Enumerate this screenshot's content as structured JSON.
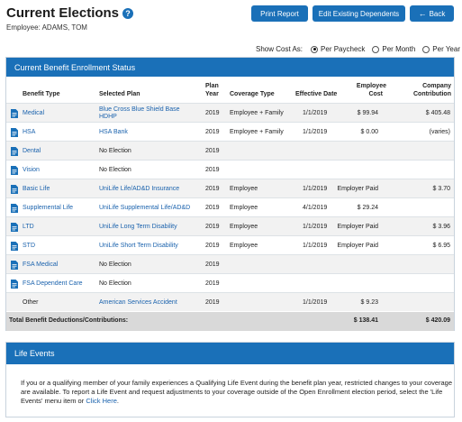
{
  "header": {
    "title": "Current Elections",
    "employee": "Employee: ADAMS, TOM"
  },
  "buttons": {
    "print": "Print Report",
    "edit": "Edit Existing Dependents",
    "back": "Back"
  },
  "cost_as": {
    "label": "Show Cost As:",
    "options": [
      "Per Paycheck",
      "Per Month",
      "Per Year"
    ],
    "selected": "Per Paycheck"
  },
  "enrollment": {
    "title": "Current Benefit Enrollment Status",
    "columns": {
      "benefit_type": "Benefit Type",
      "selected_plan": "Selected Plan",
      "plan_year_1": "Plan",
      "plan_year_2": "Year",
      "coverage_type": "Coverage Type",
      "effective_date": "Effective Date",
      "employee_cost_1": "Employee",
      "employee_cost_2": "Cost",
      "company_1": "Company",
      "company_2": "Contribution"
    },
    "rows": [
      {
        "type": "Medical",
        "plan": "Blue Cross Blue Shield Base",
        "plan2": "HDHP",
        "year": "2019",
        "coverage": "Employee + Family",
        "date": "1/1/2019",
        "ecost": "$ 99.94",
        "company": "$ 405.48"
      },
      {
        "type": "HSA",
        "plan": "HSA Bank",
        "plan2": "",
        "year": "2019",
        "coverage": "Employee + Family",
        "date": "1/1/2019",
        "ecost": "$ 0.00",
        "company": "(varies)"
      },
      {
        "type": "Dental",
        "plan": "No Election",
        "plan2": "",
        "year": "2019",
        "coverage": "",
        "date": "",
        "ecost": "",
        "company": ""
      },
      {
        "type": "Vision",
        "plan": "No Election",
        "plan2": "",
        "year": "2019",
        "coverage": "",
        "date": "",
        "ecost": "",
        "company": ""
      },
      {
        "type": "Basic Life",
        "plan": "UniLife Life/AD&D Insurance",
        "plan2": "",
        "year": "2019",
        "coverage": "Employee",
        "date": "1/1/2019",
        "ecost": "Employer Paid",
        "company": "$ 3.70"
      },
      {
        "type": "Supplemental Life",
        "plan": "UniLife Supplemental Life/AD&D",
        "plan2": "",
        "year": "2019",
        "coverage": "Employee",
        "date": "4/1/2019",
        "ecost": "$ 29.24",
        "company": ""
      },
      {
        "type": "LTD",
        "plan": "UniLife Long Term Disability",
        "plan2": "",
        "year": "2019",
        "coverage": "Employee",
        "date": "1/1/2019",
        "ecost": "Employer Paid",
        "company": "$ 3.96"
      },
      {
        "type": "STD",
        "plan": "UniLife Short Term Disability",
        "plan2": "",
        "year": "2019",
        "coverage": "Employee",
        "date": "1/1/2019",
        "ecost": "Employer Paid",
        "company": "$ 6.95"
      },
      {
        "type": "FSA Medical",
        "plan": "No Election",
        "plan2": "",
        "year": "2019",
        "coverage": "",
        "date": "",
        "ecost": "",
        "company": ""
      },
      {
        "type": "FSA Dependent Care",
        "plan": "No Election",
        "plan2": "",
        "year": "2019",
        "coverage": "",
        "date": "",
        "ecost": "",
        "company": ""
      },
      {
        "type": "Other",
        "plan": "American Services Accident",
        "plan2": "",
        "year": "2019",
        "coverage": "",
        "date": "1/1/2019",
        "ecost": "$ 9.23",
        "company": ""
      }
    ],
    "total": {
      "label": "Total Benefit Deductions/Contributions:",
      "employee": "$ 138.41",
      "company": "$ 420.09"
    }
  },
  "life_events": {
    "title": "Life Events",
    "text_before_link": "If you or a qualifying member of your family experiences a Qualifying Life Event during the benefit plan year, restricted changes to your coverage are available. To report a Life Event and request adjustments to your coverage outside of the Open Enrollment election period, select the 'Life Events' menu item or",
    "link": "Click Here",
    "text_after_link": "."
  },
  "colors": {
    "accent": "#1a70b8",
    "link": "#1a62ad",
    "alt_row": "#f2f2f2",
    "total_row": "#d9d9d9"
  }
}
